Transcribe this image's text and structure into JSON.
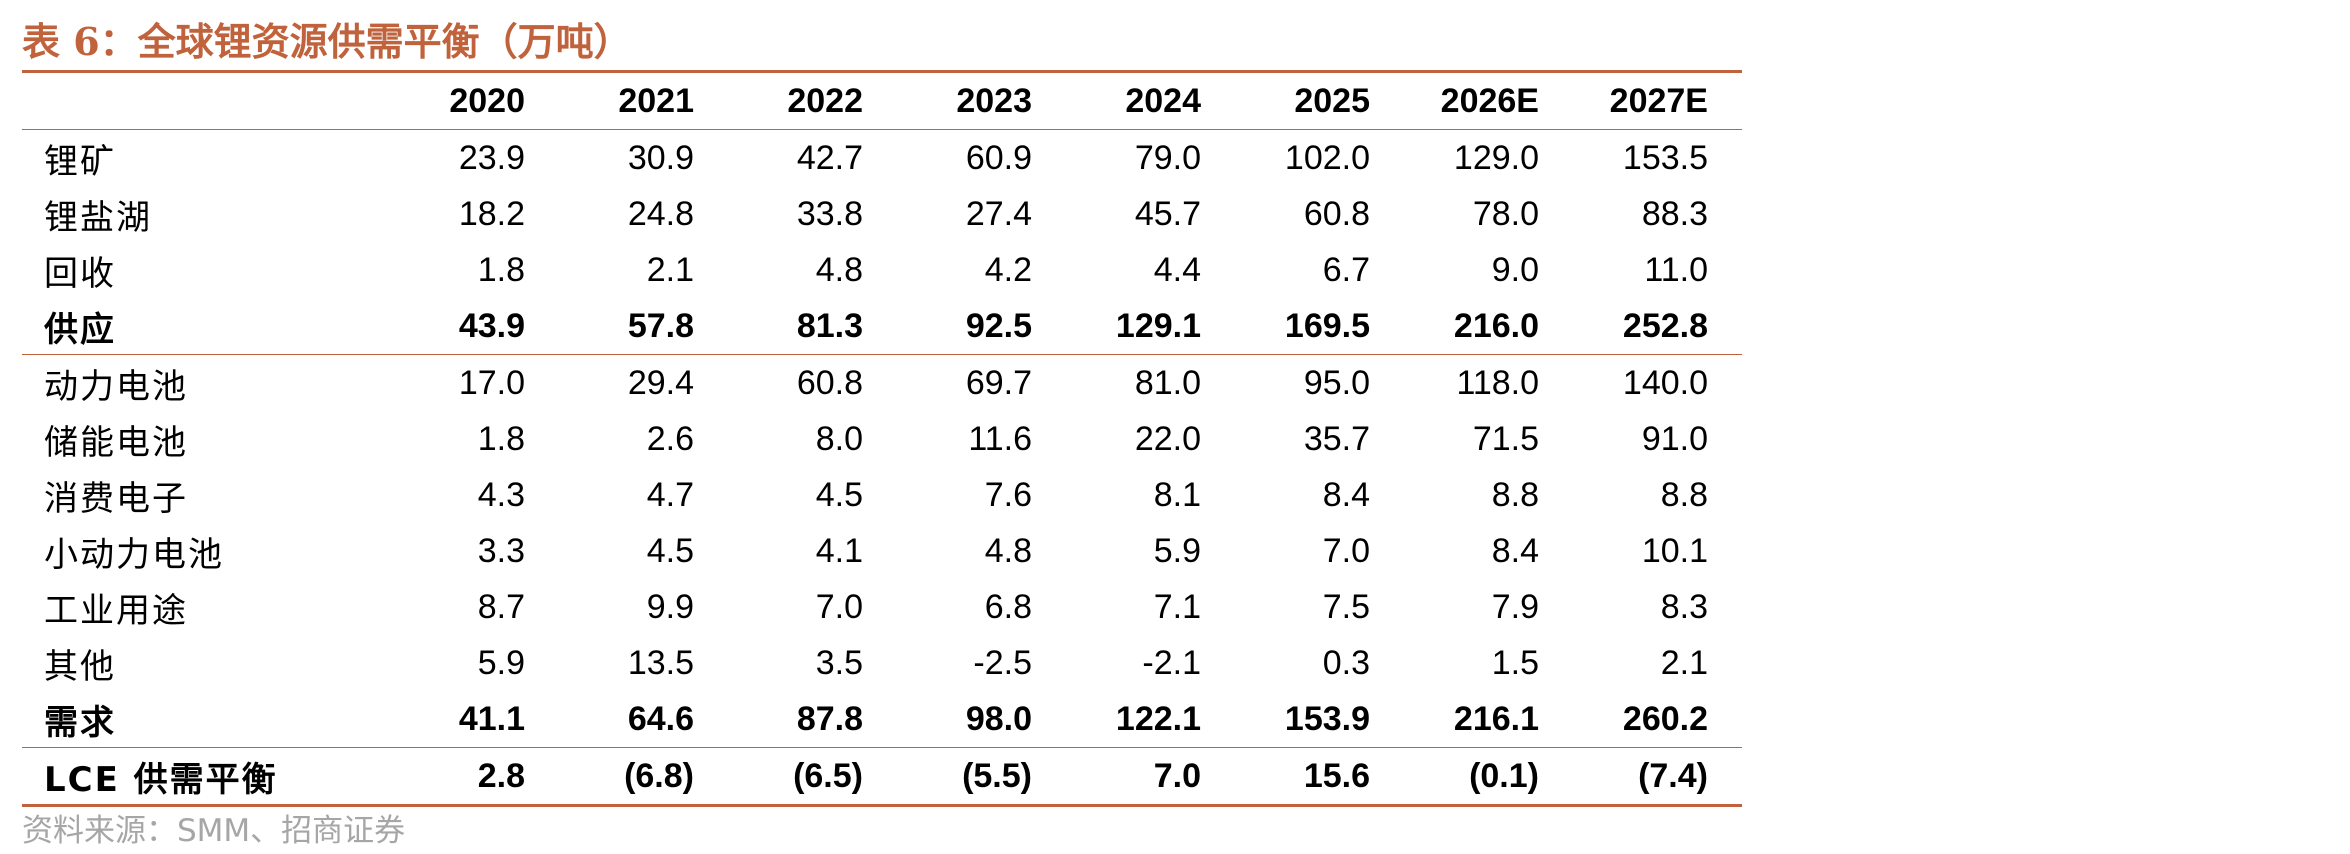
{
  "title": "表 6：全球锂资源供需平衡（万吨）",
  "table": {
    "columns": [
      "2020",
      "2021",
      "2022",
      "2023",
      "2024",
      "2025",
      "2026E",
      "2027E"
    ],
    "rows": [
      {
        "label": "锂矿",
        "values": [
          "23.9",
          "30.9",
          "42.7",
          "60.9",
          "79.0",
          "102.0",
          "129.0",
          "153.5"
        ]
      },
      {
        "label": "锂盐湖",
        "values": [
          "18.2",
          "24.8",
          "33.8",
          "27.4",
          "45.7",
          "60.8",
          "78.0",
          "88.3"
        ]
      },
      {
        "label": "回收",
        "values": [
          "1.8",
          "2.1",
          "4.8",
          "4.2",
          "4.4",
          "6.7",
          "9.0",
          "11.0"
        ]
      },
      {
        "label": "供应",
        "values": [
          "43.9",
          "57.8",
          "81.3",
          "92.5",
          "129.1",
          "169.5",
          "216.0",
          "252.8"
        ]
      },
      {
        "label": "动力电池",
        "values": [
          "17.0",
          "29.4",
          "60.8",
          "69.7",
          "81.0",
          "95.0",
          "118.0",
          "140.0"
        ]
      },
      {
        "label": "储能电池",
        "values": [
          "1.8",
          "2.6",
          "8.0",
          "11.6",
          "22.0",
          "35.7",
          "71.5",
          "91.0"
        ]
      },
      {
        "label": "消费电子",
        "values": [
          "4.3",
          "4.7",
          "4.5",
          "7.6",
          "8.1",
          "8.4",
          "8.8",
          "8.8"
        ]
      },
      {
        "label": "小动力电池",
        "values": [
          "3.3",
          "4.5",
          "4.1",
          "4.8",
          "5.9",
          "7.0",
          "8.4",
          "10.1"
        ]
      },
      {
        "label": "工业用途",
        "values": [
          "8.7",
          "9.9",
          "7.0",
          "6.8",
          "7.1",
          "7.5",
          "7.9",
          "8.3"
        ]
      },
      {
        "label": "其他",
        "values": [
          "5.9",
          "13.5",
          "3.5",
          "-2.5",
          "-2.1",
          "0.3",
          "1.5",
          "2.1"
        ]
      },
      {
        "label": "需求",
        "values": [
          "41.1",
          "64.6",
          "87.8",
          "98.0",
          "122.1",
          "153.9",
          "216.1",
          "260.2"
        ]
      },
      {
        "label": "LCE 供需平衡",
        "values": [
          "2.8",
          "(6.8)",
          "(6.5)",
          "(5.5)",
          "7.0",
          "15.6",
          "(0.1)",
          "(7.4)"
        ]
      }
    ]
  },
  "source": "资料来源：SMM、招商证券",
  "colors": {
    "accent": "#c0623c",
    "source_text": "#a6a6a6"
  }
}
